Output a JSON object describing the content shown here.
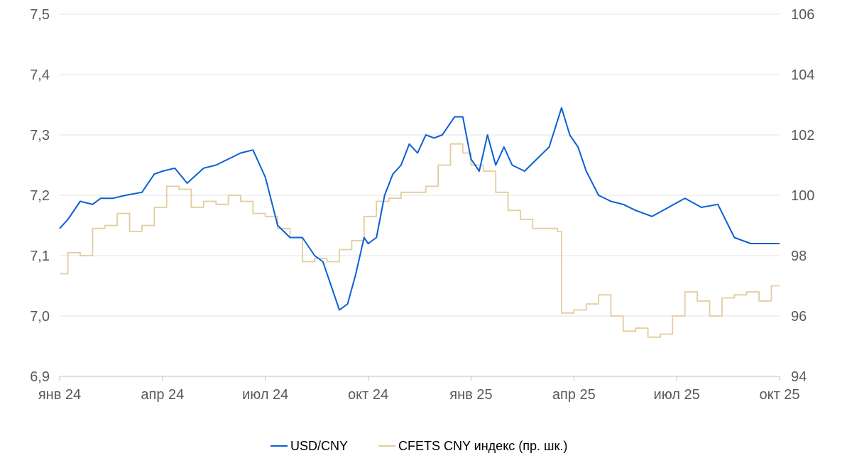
{
  "chart_data": {
    "type": "line",
    "title": "",
    "xlabel": "",
    "ylabel": "",
    "ylim": [
      6.9,
      7.5
    ],
    "y2lim": [
      94,
      106
    ],
    "y_ticks": [
      "6,9",
      "7,0",
      "7,1",
      "7,2",
      "7,3",
      "7,4",
      "7,5"
    ],
    "y2_ticks": [
      "94",
      "96",
      "98",
      "100",
      "102",
      "104",
      "106"
    ],
    "x_ticks": [
      "янв 24",
      "апр 24",
      "июл 24",
      "окт 24",
      "янв 25",
      "апр 25",
      "июл 25",
      "окт 25"
    ],
    "grid": true,
    "legend": "bottom",
    "series": [
      {
        "name": "USD/CNY",
        "axis": "left",
        "color": "#0a5fd6",
        "x": [
          2024.0,
          2024.02,
          2024.05,
          2024.08,
          2024.1,
          2024.13,
          2024.16,
          2024.2,
          2024.23,
          2024.25,
          2024.28,
          2024.31,
          2024.35,
          2024.38,
          2024.41,
          2024.44,
          2024.47,
          2024.5,
          2024.53,
          2024.56,
          2024.59,
          2024.62,
          2024.64,
          2024.66,
          2024.68,
          2024.7,
          2024.72,
          2024.74,
          2024.75,
          2024.77,
          2024.79,
          2024.81,
          2024.83,
          2024.85,
          2024.87,
          2024.89,
          2024.91,
          2024.93,
          2024.96,
          2024.98,
          2025.0,
          2025.02,
          2025.04,
          2025.06,
          2025.08,
          2025.1,
          2025.13,
          2025.16,
          2025.19,
          2025.22,
          2025.24,
          2025.26,
          2025.28,
          2025.31,
          2025.34,
          2025.37,
          2025.4,
          2025.44,
          2025.48,
          2025.52,
          2025.56,
          2025.6,
          2025.64,
          2025.68,
          2025.72,
          2025.75
        ],
        "values": [
          7.145,
          7.16,
          7.19,
          7.185,
          7.195,
          7.195,
          7.2,
          7.205,
          7.235,
          7.24,
          7.245,
          7.22,
          7.245,
          7.25,
          7.26,
          7.27,
          7.275,
          7.23,
          7.15,
          7.13,
          7.13,
          7.1,
          7.09,
          7.05,
          7.01,
          7.02,
          7.07,
          7.13,
          7.12,
          7.13,
          7.2,
          7.235,
          7.25,
          7.285,
          7.27,
          7.3,
          7.295,
          7.3,
          7.33,
          7.33,
          7.26,
          7.24,
          7.3,
          7.25,
          7.28,
          7.25,
          7.24,
          7.26,
          7.28,
          7.345,
          7.3,
          7.28,
          7.24,
          7.2,
          7.19,
          7.185,
          7.175,
          7.165,
          7.18,
          7.195,
          7.18,
          7.185,
          7.13,
          7.12,
          7.12,
          7.12
        ]
      },
      {
        "name": "CFETS CNY индекс (пр. шк.)",
        "axis": "right",
        "color": "#e3cc9e",
        "x": [
          2024.0,
          2024.02,
          2024.05,
          2024.08,
          2024.11,
          2024.14,
          2024.17,
          2024.2,
          2024.23,
          2024.26,
          2024.29,
          2024.32,
          2024.35,
          2024.38,
          2024.41,
          2024.44,
          2024.47,
          2024.5,
          2024.53,
          2024.56,
          2024.59,
          2024.62,
          2024.65,
          2024.68,
          2024.71,
          2024.74,
          2024.77,
          2024.8,
          2024.83,
          2024.86,
          2024.89,
          2024.92,
          2024.95,
          2024.98,
          2025.0,
          2025.03,
          2025.06,
          2025.09,
          2025.12,
          2025.15,
          2025.18,
          2025.21,
          2025.22,
          2025.25,
          2025.28,
          2025.31,
          2025.34,
          2025.37,
          2025.4,
          2025.43,
          2025.46,
          2025.49,
          2025.52,
          2025.55,
          2025.58,
          2025.61,
          2025.64,
          2025.67,
          2025.7,
          2025.73,
          2025.75
        ],
        "values": [
          97.4,
          98.1,
          98.0,
          98.9,
          99.0,
          99.4,
          98.8,
          99.0,
          99.6,
          100.3,
          100.2,
          99.6,
          99.8,
          99.7,
          100.0,
          99.8,
          99.4,
          99.3,
          98.9,
          98.6,
          97.8,
          97.9,
          97.8,
          98.2,
          98.5,
          99.3,
          99.8,
          99.9,
          100.1,
          100.1,
          100.3,
          101.0,
          101.7,
          101.4,
          101.0,
          100.8,
          100.1,
          99.5,
          99.2,
          98.9,
          98.9,
          98.8,
          96.1,
          96.2,
          96.4,
          96.7,
          96.0,
          95.5,
          95.6,
          95.3,
          95.4,
          96.0,
          96.8,
          96.5,
          96.0,
          96.6,
          96.7,
          96.8,
          96.5,
          97.0,
          97.0
        ]
      }
    ]
  }
}
